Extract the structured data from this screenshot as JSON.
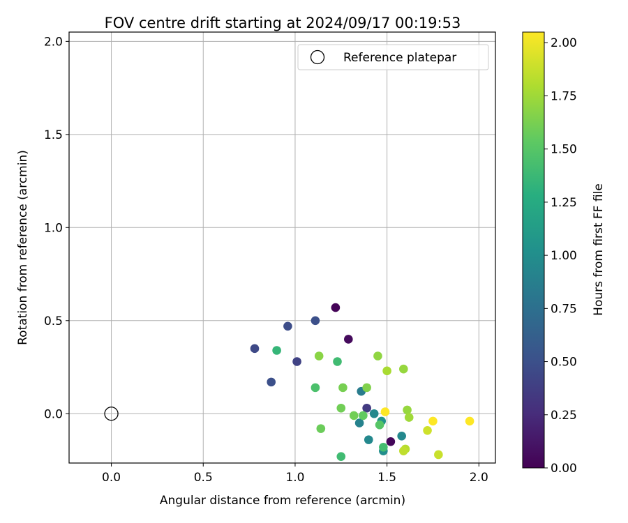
{
  "chart_data": {
    "type": "scatter",
    "title": "FOV centre drift starting at 2024/09/17 00:19:53",
    "xlabel": "Angular distance from reference (arcmin)",
    "ylabel": "Rotation from reference (arcmin)",
    "xlim": [
      -0.23,
      2.09
    ],
    "ylim": [
      -0.265,
      2.05
    ],
    "xticks": [
      0.0,
      0.5,
      1.0,
      1.5,
      2.0
    ],
    "xtick_labels": [
      "0.0",
      "0.5",
      "1.0",
      "1.5",
      "2.0"
    ],
    "yticks": [
      0.0,
      0.5,
      1.0,
      1.5,
      2.0
    ],
    "ytick_labels": [
      "0.0",
      "0.5",
      "1.0",
      "1.5",
      "2.0"
    ],
    "grid": true,
    "legend": {
      "position": "top-right",
      "entries": [
        "Reference platepar"
      ]
    },
    "reference_point": {
      "name": "Reference platepar",
      "x": 0.0,
      "y": 0.0
    },
    "colorbar": {
      "label": "Hours from first FF file",
      "min": 0.0,
      "max": 2.05,
      "colormap": "viridis",
      "ticks": [
        0.0,
        0.25,
        0.5,
        0.75,
        1.0,
        1.25,
        1.5,
        1.75,
        2.0
      ],
      "tick_labels": [
        "0.00",
        "0.25",
        "0.50",
        "0.75",
        "1.00",
        "1.25",
        "1.50",
        "1.75",
        "2.00"
      ]
    },
    "points": [
      {
        "x": 1.22,
        "y": 0.57,
        "c": 0.02
      },
      {
        "x": 1.29,
        "y": 0.4,
        "c": 0.05
      },
      {
        "x": 1.52,
        "y": -0.15,
        "c": 0.03
      },
      {
        "x": 1.11,
        "y": 0.5,
        "c": 0.5
      },
      {
        "x": 0.96,
        "y": 0.47,
        "c": 0.48
      },
      {
        "x": 0.78,
        "y": 0.35,
        "c": 0.45
      },
      {
        "x": 1.01,
        "y": 0.28,
        "c": 0.4
      },
      {
        "x": 0.87,
        "y": 0.17,
        "c": 0.5
      },
      {
        "x": 1.39,
        "y": 0.03,
        "c": 0.35
      },
      {
        "x": 1.36,
        "y": 0.12,
        "c": 0.85
      },
      {
        "x": 1.35,
        "y": -0.05,
        "c": 0.9
      },
      {
        "x": 1.4,
        "y": -0.14,
        "c": 0.95
      },
      {
        "x": 1.43,
        "y": 0.0,
        "c": 0.95
      },
      {
        "x": 1.47,
        "y": -0.04,
        "c": 1.05
      },
      {
        "x": 1.48,
        "y": -0.2,
        "c": 1.0
      },
      {
        "x": 1.58,
        "y": -0.12,
        "c": 0.95
      },
      {
        "x": 0.9,
        "y": 0.34,
        "c": 1.35
      },
      {
        "x": 1.23,
        "y": 0.28,
        "c": 1.4
      },
      {
        "x": 1.11,
        "y": 0.14,
        "c": 1.45
      },
      {
        "x": 1.25,
        "y": -0.23,
        "c": 1.4
      },
      {
        "x": 1.48,
        "y": -0.18,
        "c": 1.42
      },
      {
        "x": 1.46,
        "y": -0.06,
        "c": 1.5
      },
      {
        "x": 1.37,
        "y": -0.01,
        "c": 1.55
      },
      {
        "x": 1.32,
        "y": -0.01,
        "c": 1.6
      },
      {
        "x": 1.25,
        "y": 0.03,
        "c": 1.6
      },
      {
        "x": 1.26,
        "y": 0.14,
        "c": 1.62
      },
      {
        "x": 1.39,
        "y": 0.14,
        "c": 1.65
      },
      {
        "x": 1.13,
        "y": 0.31,
        "c": 1.68
      },
      {
        "x": 1.45,
        "y": 0.31,
        "c": 1.7
      },
      {
        "x": 1.14,
        "y": -0.08,
        "c": 1.58
      },
      {
        "x": 1.5,
        "y": 0.23,
        "c": 1.78
      },
      {
        "x": 1.59,
        "y": 0.24,
        "c": 1.72
      },
      {
        "x": 1.61,
        "y": 0.02,
        "c": 1.72
      },
      {
        "x": 1.62,
        "y": -0.02,
        "c": 1.75
      },
      {
        "x": 1.6,
        "y": -0.19,
        "c": 1.82
      },
      {
        "x": 1.59,
        "y": -0.2,
        "c": 1.85
      },
      {
        "x": 1.72,
        "y": -0.09,
        "c": 1.9
      },
      {
        "x": 1.78,
        "y": -0.22,
        "c": 1.88
      },
      {
        "x": 1.49,
        "y": 0.01,
        "c": 2.05
      },
      {
        "x": 1.75,
        "y": -0.04,
        "c": 2.05
      },
      {
        "x": 1.95,
        "y": -0.04,
        "c": 2.05
      }
    ]
  }
}
